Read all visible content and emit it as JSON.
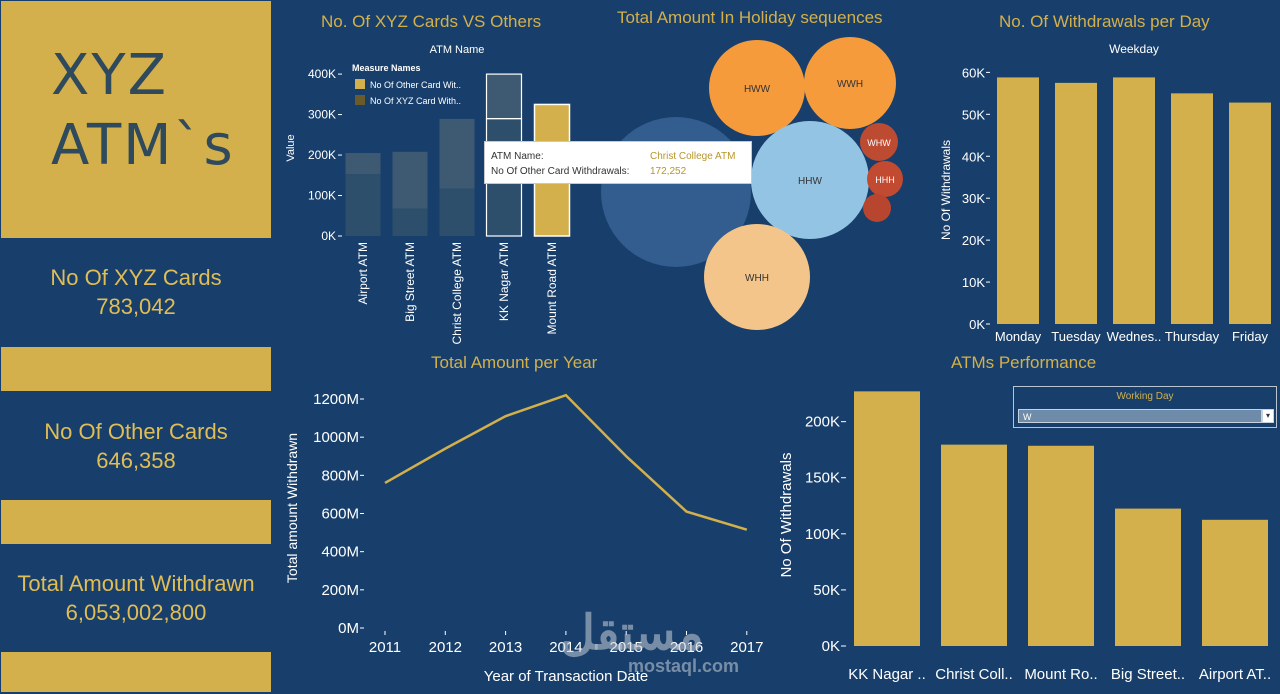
{
  "logo": {
    "line1": "XYZ",
    "line2": "ATM`s"
  },
  "kpis": {
    "xyz_cards": {
      "label": "No Of XYZ Cards",
      "value": "783,042"
    },
    "other_cards": {
      "label": "No Of Other Cards",
      "value": "646,358"
    },
    "total_amount": {
      "label": "Total Amount Withdrawn",
      "value": "6,053,002,800"
    }
  },
  "titles": {
    "cards_vs_others": "No. Of XYZ Cards VS Others",
    "holiday": "Total Amount In Holiday sequences",
    "per_day": "No. Of Withdrawals per Day",
    "per_year": "Total Amount per Year",
    "performance": "ATMs Performance"
  },
  "tooltip": {
    "k1": "ATM Name:",
    "v1": "Christ College ATM",
    "k2": "No Of Other Card Withdrawals:",
    "v2": "172,252"
  },
  "filter": {
    "title": "Working Day",
    "value": "W",
    "arrow": "▾"
  },
  "watermark": {
    "arabic": "مستقل",
    "latin": "mostaql.com"
  },
  "colors": {
    "navy": "#183f6b",
    "gold": "#d3b04b",
    "xyz_series": "#2b4b67",
    "other_series": "#354f66"
  },
  "chart_data": [
    {
      "type": "bar",
      "title": "No. Of XYZ Cards VS Others",
      "header": "ATM Name",
      "ylabel": "Value",
      "legend_title": "Measure Names",
      "legend": [
        "No Of Other Card Wit..",
        "No Of XYZ Card With.."
      ],
      "categories": [
        "Airport ATM",
        "Big Street ATM",
        "Christ College ATM",
        "KK Nagar ATM",
        "Mount Road ATM"
      ],
      "ylim": [
        0,
        420000
      ],
      "yticks": [
        0,
        100000,
        200000,
        300000,
        400000
      ],
      "ytick_labels": [
        "0K",
        "100K",
        "200K",
        "300K",
        "400K"
      ],
      "series": [
        {
          "name": "No Of Other Card Withdrawals",
          "values": [
            52000,
            140000,
            172252,
            110000,
            0
          ]
        },
        {
          "name": "No Of XYZ Card Withdrawals",
          "values": [
            153000,
            68000,
            117000,
            290000,
            325000
          ]
        }
      ]
    },
    {
      "type": "bubble",
      "title": "Total Amount In Holiday sequences",
      "labels": [
        "",
        "HWW",
        "WWH",
        "HHW",
        "WHW",
        "HHH",
        "",
        "WHH"
      ],
      "colors": [
        "#325d8e",
        "#f59b3c",
        "#f59b3c",
        "#93c4e4",
        "#bd4b32",
        "#c24a30",
        "#b8462f",
        "#f4c58a"
      ]
    },
    {
      "type": "bar",
      "title": "No. Of Withdrawals per Day",
      "header": "Weekday",
      "ylabel": "No Of Withdrawals",
      "categories": [
        "Monday",
        "Tuesday",
        "Wednes..",
        "Thursday",
        "Friday"
      ],
      "values": [
        58800,
        57500,
        58800,
        55000,
        52800
      ],
      "ylim": [
        0,
        62000
      ],
      "yticks": [
        0,
        10000,
        20000,
        30000,
        40000,
        50000,
        60000
      ],
      "ytick_labels": [
        "0K",
        "10K",
        "20K",
        "30K",
        "40K",
        "50K",
        "60K"
      ]
    },
    {
      "type": "line",
      "title": "Total Amount per Year",
      "xlabel": "Year of Transaction Date",
      "ylabel": "Total amount Withdrawn",
      "x": [
        2011,
        2012,
        2013,
        2014,
        2015,
        2016,
        2017
      ],
      "values": [
        760000000,
        940000000,
        1110000000,
        1220000000,
        900000000,
        610000000,
        515000000
      ],
      "ylim": [
        0,
        1200000000
      ],
      "yticks": [
        0,
        200000000,
        400000000,
        600000000,
        800000000,
        1000000000,
        1200000000
      ],
      "ytick_labels": [
        "0M",
        "200M",
        "400M",
        "600M",
        "800M",
        "1000M",
        "1200M"
      ]
    },
    {
      "type": "bar",
      "title": "ATMs Performance",
      "ylabel": "No Of Withdrawals",
      "categories": [
        "KK Nagar ..",
        "Christ Coll..",
        "Mount Ro..",
        "Big Street..",
        "Airport AT.."
      ],
      "values": [
        227000,
        179500,
        178500,
        122500,
        112500
      ],
      "ylim": [
        0,
        230000
      ],
      "yticks": [
        0,
        50000,
        100000,
        150000,
        200000
      ],
      "ytick_labels": [
        "0K",
        "50K",
        "100K",
        "150K",
        "200K"
      ]
    }
  ]
}
